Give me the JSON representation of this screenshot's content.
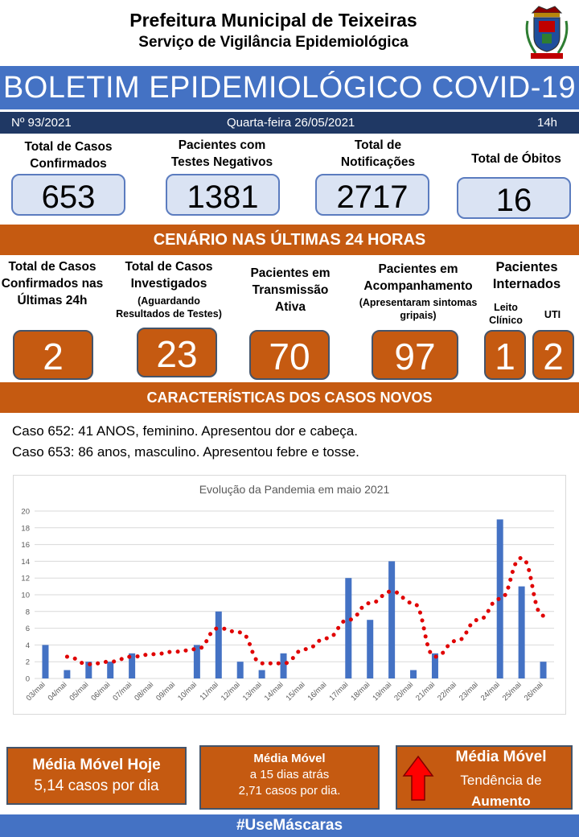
{
  "header": {
    "line1": "Prefeitura Municipal de Teixeiras",
    "line2": "Serviço de Vigilância Epidemiológica",
    "crest_icon": "municipal-coat-of-arms-icon"
  },
  "banner": {
    "title": "BOLETIM EPIDEMIOLÓGICO COVID-19"
  },
  "info": {
    "number": "Nº 93/2021",
    "date": "Quarta-feira  26/05/2021",
    "time": "14h"
  },
  "totals": [
    {
      "label": "Total de Casos Confirmados",
      "value": "653"
    },
    {
      "label": "Pacientes com Testes Negativos",
      "value": "1381"
    },
    {
      "label": "Total de Notificações",
      "value": "2717"
    },
    {
      "label": "Total de Óbitos",
      "value": "16"
    }
  ],
  "section24": {
    "title": "CENÁRIO NAS ÚLTIMAS 24 HORAS",
    "items": [
      {
        "label": "Total de Casos Confirmados nas Últimas 24h",
        "sub": "",
        "value": "2"
      },
      {
        "label": "Total de Casos Investigados",
        "sub": "(Aguardando Resultados de Testes)",
        "value": "23"
      },
      {
        "label": "Pacientes em Transmissão Ativa",
        "sub": "",
        "value": "70"
      },
      {
        "label": "Pacientes em Acompanhamento",
        "sub": "(Apresentaram sintomas gripais)",
        "value": "97"
      }
    ],
    "internados": {
      "label": "Pacientes Internados",
      "leito_label": "Leito Clínico",
      "leito_value": "1",
      "uti_label": "UTI",
      "uti_value": "2"
    }
  },
  "new_cases": {
    "title": "CARACTERÍSTICAS DOS CASOS NOVOS",
    "lines": [
      "Caso 652: 41 ANOS, feminino. Apresentou  dor e cabeça.",
      "Caso 653: 86 anos, masculino. Apresentou febre  e tosse."
    ]
  },
  "chart_data": {
    "type": "bar",
    "title": "Evolução da Pandemia em maio 2021",
    "xlabel": "",
    "ylabel": "",
    "ylim": [
      0,
      20
    ],
    "yticks": [
      0,
      2,
      4,
      6,
      8,
      10,
      12,
      14,
      16,
      18,
      20
    ],
    "grid": true,
    "colors": {
      "bars": "#4472c4",
      "moving_average": "#e00000",
      "grid": "#d9d9d9"
    },
    "categories": [
      "03/mai",
      "04/mai",
      "05/mai",
      "06/mai",
      "07/mai",
      "08/mai",
      "09/mai",
      "10/mai",
      "11/mai",
      "12/mai",
      "13/mai",
      "14/mai",
      "15/mai",
      "16/mai",
      "17/mai",
      "18/mai",
      "19/mai",
      "20/mai",
      "21/mai",
      "22/mai",
      "23/mai",
      "24/mai",
      "25/mai",
      "26/mai"
    ],
    "series": [
      {
        "type": "bar",
        "values": [
          4,
          1,
          2,
          2,
          3,
          0,
          0,
          4,
          8,
          2,
          1,
          3,
          0,
          0,
          12,
          7,
          14,
          1,
          3,
          0,
          0,
          19,
          11,
          2
        ]
      },
      {
        "type": "dotted-line",
        "values": [
          null,
          2.6,
          1.7,
          2.0,
          2.6,
          2.9,
          3.2,
          3.5,
          6.0,
          5.5,
          1.8,
          1.8,
          3.5,
          4.8,
          7.0,
          9.0,
          10.4,
          9.0,
          2.6,
          4.5,
          7.0,
          9.5,
          14.4,
          7.5
        ]
      }
    ]
  },
  "footer_boxes": {
    "media_hoje": {
      "title": "Média Móvel Hoje",
      "text": "5,14 casos por dia"
    },
    "media_15": {
      "title": "Média Móvel",
      "line1": "a 15 dias atrás",
      "line2": "2,71  casos por dia."
    },
    "tendencia": {
      "title": "Média Móvel",
      "line1": "Tendência  de",
      "line2": "Aumento",
      "arrow_icon": "up-arrow-icon",
      "arrow_color": "#ff0000"
    }
  },
  "footer": {
    "hashtag": "#UseMáscaras"
  }
}
